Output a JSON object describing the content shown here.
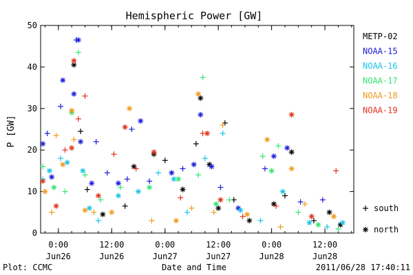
{
  "chart_data": {
    "type": "scatter",
    "title": "Hemispheric Power [GW]",
    "xlabel": "Date and Time",
    "ylabel": "P [GW]",
    "xlim": [
      "2011-06-25T20:00",
      "2011-06-28T18:30"
    ],
    "ylim": [
      0,
      50
    ],
    "y_ticks": [
      0,
      10,
      20,
      30,
      40,
      50
    ],
    "x_ticks": [
      {
        "t": "2011-06-26T00:00",
        "time": "0:00",
        "date": "Jun26"
      },
      {
        "t": "2011-06-26T12:00",
        "time": "12:00",
        "date": "Jun26"
      },
      {
        "t": "2011-06-27T00:00",
        "time": "0:00",
        "date": "Jun27"
      },
      {
        "t": "2011-06-27T12:00",
        "time": "12:00",
        "date": "Jun27"
      },
      {
        "t": "2011-06-28T00:00",
        "time": "0:00",
        "date": "Jun28"
      },
      {
        "t": "2011-06-28T12:00",
        "time": "12:00",
        "date": "Jun28"
      }
    ],
    "marker_legend": [
      {
        "marker": "plus",
        "label": "south"
      },
      {
        "marker": "asterisk",
        "label": "north"
      }
    ],
    "series": [
      {
        "name": "METP-02",
        "color": "#000000",
        "points": [
          {
            "x": "2011-06-26T03:30",
            "y": 40.5,
            "m": "asterisk"
          },
          {
            "x": "2011-06-26T05:00",
            "y": 24.5,
            "m": "plus"
          },
          {
            "x": "2011-06-26T06:30",
            "y": 10.5,
            "m": "plus"
          },
          {
            "x": "2011-06-26T10:00",
            "y": 4.5,
            "m": "asterisk"
          },
          {
            "x": "2011-06-26T15:00",
            "y": 6.5,
            "m": "plus"
          },
          {
            "x": "2011-06-26T17:00",
            "y": 16.0,
            "m": "asterisk"
          },
          {
            "x": "2011-06-26T21:30",
            "y": 19.0,
            "m": "asterisk"
          },
          {
            "x": "2011-06-27T00:00",
            "y": 17.5,
            "m": "plus"
          },
          {
            "x": "2011-06-27T04:00",
            "y": 10.5,
            "m": "asterisk"
          },
          {
            "x": "2011-06-27T07:00",
            "y": 21.5,
            "m": "plus"
          },
          {
            "x": "2011-06-27T08:00",
            "y": 32.5,
            "m": "asterisk"
          },
          {
            "x": "2011-06-27T10:00",
            "y": 16.5,
            "m": "asterisk"
          },
          {
            "x": "2011-06-27T13:30",
            "y": 26.5,
            "m": "plus"
          },
          {
            "x": "2011-06-27T12:00",
            "y": 6.0,
            "m": "asterisk"
          },
          {
            "x": "2011-06-27T15:30",
            "y": 8.0,
            "m": "plus"
          },
          {
            "x": "2011-06-27T19:00",
            "y": 3.0,
            "m": "asterisk"
          },
          {
            "x": "2011-06-28T00:30",
            "y": 7.0,
            "m": "asterisk"
          },
          {
            "x": "2011-06-28T04:30",
            "y": 19.5,
            "m": "asterisk"
          },
          {
            "x": "2011-06-28T03:00",
            "y": 9.0,
            "m": "plus"
          },
          {
            "x": "2011-06-28T09:30",
            "y": 3.0,
            "m": "plus"
          },
          {
            "x": "2011-06-28T13:00",
            "y": 5.0,
            "m": "asterisk"
          },
          {
            "x": "2011-06-28T15:30",
            "y": 2.0,
            "m": "asterisk"
          }
        ]
      },
      {
        "name": "NOAA-15",
        "color": "#1a1adb",
        "points": [
          {
            "x": "2011-06-25T20:30",
            "y": 21.5,
            "m": "asterisk"
          },
          {
            "x": "2011-06-25T21:30",
            "y": 24.0,
            "m": "plus"
          },
          {
            "x": "2011-06-25T22:30",
            "y": 13.5,
            "m": "asterisk"
          },
          {
            "x": "2011-06-26T00:30",
            "y": 30.5,
            "m": "plus"
          },
          {
            "x": "2011-06-26T01:00",
            "y": 36.8,
            "m": "asterisk"
          },
          {
            "x": "2011-06-26T03:30",
            "y": 33.5,
            "m": "asterisk"
          },
          {
            "x": "2011-06-26T04:00",
            "y": 46.5,
            "m": "plus"
          },
          {
            "x": "2011-06-26T04:30",
            "y": 46.5,
            "m": "asterisk"
          },
          {
            "x": "2011-06-26T05:00",
            "y": 22.0,
            "m": "asterisk"
          },
          {
            "x": "2011-06-26T07:30",
            "y": 12.0,
            "m": "asterisk"
          },
          {
            "x": "2011-06-26T08:30",
            "y": 22.0,
            "m": "plus"
          },
          {
            "x": "2011-06-26T11:00",
            "y": 14.5,
            "m": "plus"
          },
          {
            "x": "2011-06-26T13:30",
            "y": 12.0,
            "m": "asterisk"
          },
          {
            "x": "2011-06-26T15:30",
            "y": 13.0,
            "m": "plus"
          },
          {
            "x": "2011-06-26T16:30",
            "y": 25.0,
            "m": "plus"
          },
          {
            "x": "2011-06-26T18:30",
            "y": 27.0,
            "m": "asterisk"
          },
          {
            "x": "2011-06-26T20:30",
            "y": 12.5,
            "m": "plus"
          },
          {
            "x": "2011-06-27T01:30",
            "y": 14.5,
            "m": "asterisk"
          },
          {
            "x": "2011-06-27T04:00",
            "y": 15.5,
            "m": "plus"
          },
          {
            "x": "2011-06-27T06:30",
            "y": 16.5,
            "m": "asterisk"
          },
          {
            "x": "2011-06-27T08:00",
            "y": 28.5,
            "m": "asterisk"
          },
          {
            "x": "2011-06-27T10:30",
            "y": 16.0,
            "m": "asterisk"
          },
          {
            "x": "2011-06-27T12:30",
            "y": 11.0,
            "m": "plus"
          },
          {
            "x": "2011-06-27T16:30",
            "y": 6.0,
            "m": "asterisk"
          },
          {
            "x": "2011-06-27T22:30",
            "y": 15.5,
            "m": "plus"
          },
          {
            "x": "2011-06-28T00:30",
            "y": 18.5,
            "m": "asterisk"
          },
          {
            "x": "2011-06-28T03:30",
            "y": 20.5,
            "m": "asterisk"
          },
          {
            "x": "2011-06-28T06:30",
            "y": 7.5,
            "m": "plus"
          },
          {
            "x": "2011-06-28T11:30",
            "y": 8.0,
            "m": "plus"
          }
        ]
      },
      {
        "name": "NOAA-16",
        "color": "#19c4e6",
        "points": [
          {
            "x": "2011-06-25T20:30",
            "y": 13.0,
            "m": "plus"
          },
          {
            "x": "2011-06-25T22:00",
            "y": 15.0,
            "m": "asterisk"
          },
          {
            "x": "2011-06-26T00:30",
            "y": 18.0,
            "m": "plus"
          },
          {
            "x": "2011-06-26T02:00",
            "y": 17.0,
            "m": "asterisk"
          },
          {
            "x": "2011-06-26T05:30",
            "y": 15.0,
            "m": "asterisk"
          },
          {
            "x": "2011-06-26T07:00",
            "y": 6.0,
            "m": "asterisk"
          },
          {
            "x": "2011-06-26T09:00",
            "y": 3.0,
            "m": "plus"
          },
          {
            "x": "2011-06-26T13:30",
            "y": 9.0,
            "m": "asterisk"
          },
          {
            "x": "2011-06-26T18:00",
            "y": 10.0,
            "m": "asterisk"
          },
          {
            "x": "2011-06-26T22:30",
            "y": 14.5,
            "m": "plus"
          },
          {
            "x": "2011-06-27T02:00",
            "y": 13.0,
            "m": "asterisk"
          },
          {
            "x": "2011-06-27T05:00",
            "y": 5.0,
            "m": "plus"
          },
          {
            "x": "2011-06-27T09:00",
            "y": 18.0,
            "m": "plus"
          },
          {
            "x": "2011-06-27T13:00",
            "y": 24.0,
            "m": "plus"
          },
          {
            "x": "2011-06-27T17:00",
            "y": 5.5,
            "m": "asterisk"
          },
          {
            "x": "2011-06-27T21:30",
            "y": 3.0,
            "m": "plus"
          },
          {
            "x": "2011-06-28T02:30",
            "y": 10.0,
            "m": "asterisk"
          },
          {
            "x": "2011-06-28T08:30",
            "y": 2.5,
            "m": "asterisk"
          },
          {
            "x": "2011-06-28T12:30",
            "y": 1.5,
            "m": "plus"
          },
          {
            "x": "2011-06-28T16:00",
            "y": 2.5,
            "m": "asterisk"
          }
        ]
      },
      {
        "name": "NOAA-17",
        "color": "#33e673",
        "points": [
          {
            "x": "2011-06-25T20:30",
            "y": 16.0,
            "m": "plus"
          },
          {
            "x": "2011-06-25T23:00",
            "y": 11.0,
            "m": "asterisk"
          },
          {
            "x": "2011-06-26T01:30",
            "y": 10.0,
            "m": "plus"
          },
          {
            "x": "2011-06-26T03:00",
            "y": 29.0,
            "m": "asterisk"
          },
          {
            "x": "2011-06-26T04:30",
            "y": 43.5,
            "m": "plus"
          },
          {
            "x": "2011-06-26T06:00",
            "y": 14.0,
            "m": "plus"
          },
          {
            "x": "2011-06-26T09:30",
            "y": 8.0,
            "m": "plus"
          },
          {
            "x": "2011-06-26T14:00",
            "y": 11.0,
            "m": "plus"
          },
          {
            "x": "2011-06-26T20:30",
            "y": 11.0,
            "m": "asterisk"
          },
          {
            "x": "2011-06-27T03:00",
            "y": 13.0,
            "m": "asterisk"
          },
          {
            "x": "2011-06-27T07:30",
            "y": 14.0,
            "m": "plus"
          },
          {
            "x": "2011-06-27T08:30",
            "y": 37.5,
            "m": "plus"
          },
          {
            "x": "2011-06-27T11:30",
            "y": 7.0,
            "m": "asterisk"
          },
          {
            "x": "2011-06-27T14:30",
            "y": 8.0,
            "m": "plus"
          },
          {
            "x": "2011-06-27T22:00",
            "y": 18.5,
            "m": "plus"
          },
          {
            "x": "2011-06-28T00:00",
            "y": 15.0,
            "m": "asterisk"
          },
          {
            "x": "2011-06-28T01:30",
            "y": 21.0,
            "m": "plus"
          },
          {
            "x": "2011-06-28T06:00",
            "y": 5.0,
            "m": "plus"
          },
          {
            "x": "2011-06-28T10:30",
            "y": 2.0,
            "m": "asterisk"
          },
          {
            "x": "2011-06-28T15:00",
            "y": 1.0,
            "m": "plus"
          }
        ]
      },
      {
        "name": "NOAA-18",
        "color": "#ef9a1a",
        "points": [
          {
            "x": "2011-06-25T21:00",
            "y": 10.0,
            "m": "asterisk"
          },
          {
            "x": "2011-06-25T22:30",
            "y": 5.0,
            "m": "plus"
          },
          {
            "x": "2011-06-25T23:30",
            "y": 23.5,
            "m": "plus"
          },
          {
            "x": "2011-06-26T01:00",
            "y": 16.5,
            "m": "asterisk"
          },
          {
            "x": "2011-06-26T03:00",
            "y": 29.5,
            "m": "asterisk"
          },
          {
            "x": "2011-06-26T03:30",
            "y": 22.5,
            "m": "plus"
          },
          {
            "x": "2011-06-26T06:00",
            "y": 5.5,
            "m": "asterisk"
          },
          {
            "x": "2011-06-26T08:00",
            "y": 5.0,
            "m": "plus"
          },
          {
            "x": "2011-06-26T16:00",
            "y": 30.0,
            "m": "asterisk"
          },
          {
            "x": "2011-06-26T12:00",
            "y": 5.0,
            "m": "asterisk"
          },
          {
            "x": "2011-06-26T21:00",
            "y": 3.0,
            "m": "plus"
          },
          {
            "x": "2011-06-27T02:30",
            "y": 3.0,
            "m": "asterisk"
          },
          {
            "x": "2011-06-27T06:00",
            "y": 6.0,
            "m": "plus"
          },
          {
            "x": "2011-06-27T07:30",
            "y": 33.5,
            "m": "asterisk"
          },
          {
            "x": "2011-06-27T11:00",
            "y": 5.0,
            "m": "plus"
          },
          {
            "x": "2011-06-27T13:00",
            "y": 26.0,
            "m": "plus"
          },
          {
            "x": "2011-06-27T18:30",
            "y": 4.5,
            "m": "asterisk"
          },
          {
            "x": "2011-06-27T23:00",
            "y": 22.5,
            "m": "asterisk"
          },
          {
            "x": "2011-06-28T02:00",
            "y": 1.5,
            "m": "plus"
          },
          {
            "x": "2011-06-28T04:30",
            "y": 15.5,
            "m": "asterisk"
          },
          {
            "x": "2011-06-28T07:30",
            "y": 7.0,
            "m": "plus"
          },
          {
            "x": "2011-06-28T14:00",
            "y": 4.0,
            "m": "asterisk"
          }
        ]
      },
      {
        "name": "NOAA-19",
        "color": "#e0311a",
        "points": [
          {
            "x": "2011-06-25T20:30",
            "y": 12.5,
            "m": "asterisk"
          },
          {
            "x": "2011-06-25T23:30",
            "y": 6.5,
            "m": "asterisk"
          },
          {
            "x": "2011-06-26T01:30",
            "y": 20.0,
            "m": "plus"
          },
          {
            "x": "2011-06-26T03:00",
            "y": 20.5,
            "m": "asterisk"
          },
          {
            "x": "2011-06-26T03:30",
            "y": 41.5,
            "m": "asterisk"
          },
          {
            "x": "2011-06-26T04:30",
            "y": 27.5,
            "m": "plus"
          },
          {
            "x": "2011-06-26T06:00",
            "y": 33.0,
            "m": "plus"
          },
          {
            "x": "2011-06-26T09:00",
            "y": 9.0,
            "m": "asterisk"
          },
          {
            "x": "2011-06-26T12:30",
            "y": 19.0,
            "m": "plus"
          },
          {
            "x": "2011-06-26T15:00",
            "y": 25.5,
            "m": "asterisk"
          },
          {
            "x": "2011-06-26T17:30",
            "y": 15.5,
            "m": "plus"
          },
          {
            "x": "2011-06-26T21:30",
            "y": 19.5,
            "m": "asterisk"
          },
          {
            "x": "2011-06-27T03:30",
            "y": 8.5,
            "m": "plus"
          },
          {
            "x": "2011-06-27T08:30",
            "y": 24.0,
            "m": "plus"
          },
          {
            "x": "2011-06-27T09:30",
            "y": 24.0,
            "m": "asterisk"
          },
          {
            "x": "2011-06-27T12:30",
            "y": 8.0,
            "m": "asterisk"
          },
          {
            "x": "2011-06-27T17:30",
            "y": 4.0,
            "m": "plus"
          },
          {
            "x": "2011-06-28T01:00",
            "y": 6.5,
            "m": "plus"
          },
          {
            "x": "2011-06-28T04:30",
            "y": 28.5,
            "m": "asterisk"
          },
          {
            "x": "2011-06-28T09:00",
            "y": 4.0,
            "m": "asterisk"
          },
          {
            "x": "2011-06-28T14:30",
            "y": 15.0,
            "m": "plus"
          }
        ]
      }
    ]
  },
  "footer": {
    "left": "Plot: CCMC",
    "right": "2011/06/28 17:40:11"
  }
}
